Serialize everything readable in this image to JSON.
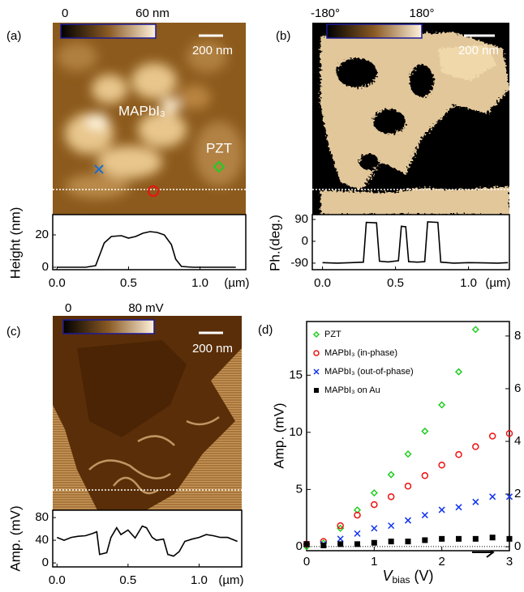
{
  "chart_data": [
    {
      "type": "line",
      "panel_label": "(a)",
      "colorbar": {
        "min_label": "0",
        "max_label": "60 nm"
      },
      "scale_bar_label": "200 nm",
      "annotations": [
        "MAPbI₃",
        "PZT"
      ],
      "y_label": "Height (nm)",
      "x_label": "(µm)",
      "x": [
        0,
        0.1,
        0.2,
        0.27,
        0.3,
        0.33,
        0.38,
        0.45,
        0.5,
        0.55,
        0.6,
        0.65,
        0.7,
        0.75,
        0.8,
        0.83,
        0.87,
        0.95,
        1.05,
        1.15,
        1.25
      ],
      "values": [
        0,
        0,
        0,
        1,
        8,
        15,
        19,
        19.5,
        18,
        19,
        21,
        22,
        21.5,
        20,
        14,
        5,
        0.5,
        0,
        0,
        0,
        0
      ],
      "color": "#000000",
      "xlim": [
        -0.03,
        1.32
      ],
      "xticks": [
        {
          "value": 0,
          "label": "0.0"
        },
        {
          "value": 0.5,
          "label": "0.5"
        },
        {
          "value": 1,
          "label": "1.0"
        }
      ],
      "ylim": [
        -1.5,
        32.5
      ],
      "yticks": [
        0,
        20
      ]
    },
    {
      "type": "line",
      "panel_label": "(b)",
      "colorbar": {
        "min_label": "-180°",
        "max_label": "180°"
      },
      "scale_bar_label": "200 nm",
      "y_label": "Ph.(deg.)",
      "x_label": "(µm)",
      "x": [
        0,
        0.1,
        0.2,
        0.28,
        0.3,
        0.37,
        0.39,
        0.45,
        0.52,
        0.54,
        0.57,
        0.59,
        0.65,
        0.7,
        0.72,
        0.79,
        0.81,
        0.9,
        1.0,
        1.1,
        1.2,
        1.27
      ],
      "values": [
        -88,
        -90,
        -88,
        -86,
        78,
        76,
        -82,
        -85,
        -80,
        62,
        60,
        -84,
        -86,
        -84,
        80,
        78,
        -86,
        -90,
        -88,
        -89,
        -90,
        -88
      ],
      "color": "#000000",
      "xlim": [
        -0.07,
        1.28
      ],
      "xticks": [
        {
          "value": 0,
          "label": "0.0"
        },
        {
          "value": 0.5,
          "label": "0.5"
        },
        {
          "value": 1,
          "label": "1.0"
        }
      ],
      "ylim": [
        -117,
        110
      ],
      "yticks": [
        90,
        0,
        -90
      ]
    },
    {
      "type": "line",
      "panel_label": "(c)",
      "colorbar": {
        "min_label": "0",
        "max_label": "80 mV"
      },
      "scale_bar_label": "200 nm",
      "y_label": "Amp. (mV)",
      "x_label": "(µm)",
      "x": [
        0,
        0.05,
        0.1,
        0.15,
        0.2,
        0.25,
        0.28,
        0.3,
        0.35,
        0.38,
        0.42,
        0.45,
        0.5,
        0.55,
        0.6,
        0.63,
        0.67,
        0.7,
        0.75,
        0.78,
        0.82,
        0.86,
        0.9,
        0.95,
        1.0,
        1.05,
        1.1,
        1.15,
        1.2,
        1.27
      ],
      "values": [
        45,
        40,
        45,
        47,
        48,
        52,
        55,
        15,
        18,
        45,
        62,
        50,
        58,
        44,
        65,
        62,
        45,
        40,
        42,
        15,
        12,
        20,
        38,
        42,
        45,
        50,
        48,
        45,
        45,
        38
      ],
      "color": "#000000",
      "xlim": [
        -0.03,
        1.3
      ],
      "xticks": [
        {
          "value": 0,
          "label": "0.0"
        },
        {
          "value": 0.5,
          "label": "0.5"
        },
        {
          "value": 1,
          "label": "1.0"
        }
      ],
      "ylim": [
        -7,
        93
      ],
      "yticks": [
        0,
        40,
        80
      ]
    },
    {
      "type": "scatter",
      "panel_label": "(d)",
      "y_label": "Amp. (mV)",
      "x_label": {
        "symbol": "V",
        "subscript": "bias",
        "unit": " (V)"
      },
      "legend_position": "upper left",
      "x": [
        0,
        0.25,
        0.5,
        0.75,
        1,
        1.25,
        1.5,
        1.75,
        2,
        2.25,
        2.5,
        2.75,
        3
      ],
      "series": [
        {
          "name": "PZT",
          "color": "#22cc22",
          "marker": "diamond",
          "axis": "y",
          "values": [
            0,
            0.3,
            1.6,
            3.2,
            4.7,
            6.3,
            8.1,
            10.1,
            12.4,
            15.3,
            19,
            null,
            null
          ]
        },
        {
          "name": "MAPbI₃ (in-phase)",
          "color": "#ee1111",
          "marker": "circle",
          "axis": "y2",
          "values": [
            0.1,
            0.2,
            0.8,
            1.2,
            1.6,
            1.9,
            2.3,
            2.7,
            3.1,
            3.5,
            3.8,
            4.2,
            4.3
          ]
        },
        {
          "name": "MAPbI₃ (out-of-phase)",
          "color": "#1133ee",
          "marker": "x",
          "axis": "y2",
          "values": [
            0.1,
            0.1,
            0.3,
            0.5,
            0.7,
            0.8,
            1.0,
            1.2,
            1.4,
            1.5,
            1.7,
            1.9,
            1.9
          ]
        },
        {
          "name": "MAPbI₃ on Au",
          "color": "#000000",
          "marker": "square",
          "axis": "y2",
          "values": [
            0.1,
            0.05,
            0.1,
            0.1,
            0.15,
            0.2,
            0.2,
            0.25,
            0.3,
            0.3,
            0.3,
            0.35,
            0.3
          ]
        }
      ],
      "xlim": [
        0,
        3
      ],
      "xticks": [
        0,
        1,
        2,
        3
      ],
      "ylim": [
        -0.36,
        19.7
      ],
      "yticks": [
        0,
        5,
        10,
        15
      ],
      "y2lim": [
        -0.15,
        8.55
      ],
      "y2ticks": [
        0,
        2,
        4,
        6,
        8
      ]
    }
  ]
}
